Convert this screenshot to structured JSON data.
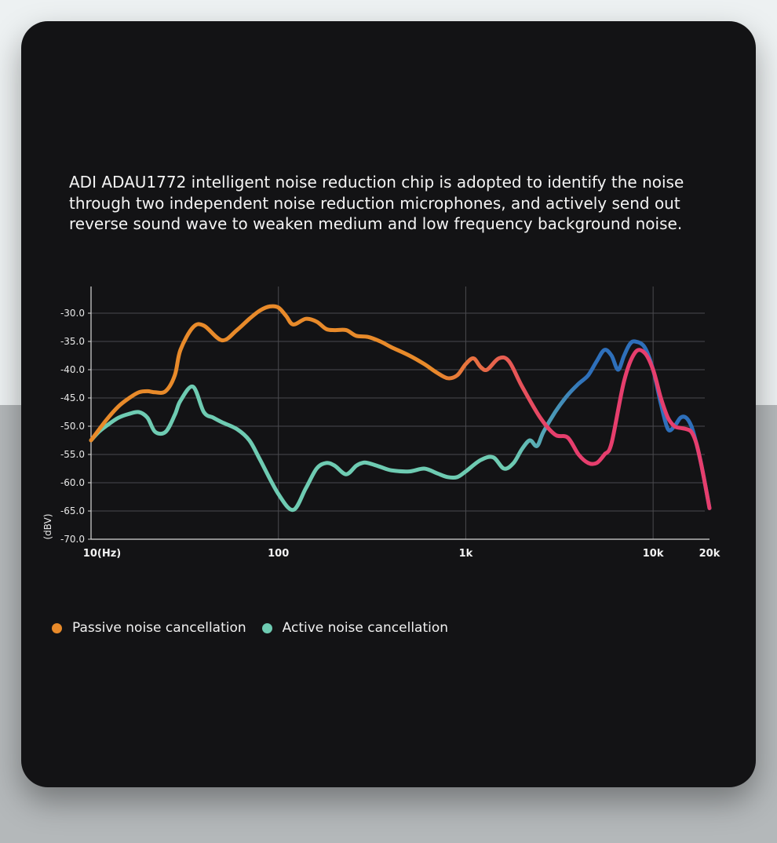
{
  "description": "ADI ADAU1772 intelligent noise reduction chip is adopted to identify the noise through two independent noise reduction microphones, and actively send out reverse sound wave to weaken medium and low frequency background noise.",
  "legend": {
    "passive": {
      "label": "Passive noise cancellation",
      "color": "#e88a2a"
    },
    "active": {
      "label": "Active noise cancellation",
      "color": "#6ecbb2"
    }
  },
  "chart_data": {
    "type": "line",
    "xscale": "log",
    "xlim": [
      10,
      20000
    ],
    "ylim": [
      -70,
      -25
    ],
    "ylabel": "(dBV)",
    "xticks": [
      {
        "value": 10,
        "label": "10(Hz)"
      },
      {
        "value": 100,
        "label": "100"
      },
      {
        "value": 1000,
        "label": "1k"
      },
      {
        "value": 10000,
        "label": "10k"
      },
      {
        "value": 20000,
        "label": "20k"
      }
    ],
    "yticks": [
      {
        "value": -30,
        "label": "-30.0"
      },
      {
        "value": -35,
        "label": "-35.0"
      },
      {
        "value": -40,
        "label": "-40.0"
      },
      {
        "value": -45,
        "label": "-45.0"
      },
      {
        "value": -50,
        "label": "-50.0"
      },
      {
        "value": -55,
        "label": "-55.0"
      },
      {
        "value": -60,
        "label": "-60.0"
      },
      {
        "value": -65,
        "label": "-65.0"
      },
      {
        "value": -70,
        "label": "-70.0"
      }
    ],
    "series": [
      {
        "name": "Passive noise cancellation",
        "color_start": "#e88a2a",
        "color_end": "#e63e6d",
        "x": [
          10,
          12,
          14,
          16,
          18,
          20,
          22,
          25,
          28,
          30,
          35,
          40,
          50,
          60,
          70,
          80,
          90,
          100,
          110,
          120,
          140,
          160,
          180,
          200,
          230,
          260,
          300,
          350,
          400,
          500,
          600,
          700,
          800,
          900,
          1000,
          1100,
          1200,
          1300,
          1500,
          1700,
          2000,
          2500,
          3000,
          3500,
          4000,
          4500,
          5000,
          5500,
          6000,
          7000,
          8000,
          9000,
          10000,
          11000,
          12000,
          13000,
          14000,
          15000,
          16000,
          17000,
          18000,
          19000,
          20000
        ],
        "y": [
          -52.5,
          -49,
          -46.5,
          -45,
          -44,
          -43.8,
          -44,
          -43.8,
          -41,
          -36.5,
          -32.5,
          -32.2,
          -34.8,
          -33,
          -31,
          -29.5,
          -28.8,
          -29,
          -30.5,
          -32,
          -31,
          -31.5,
          -32.8,
          -33,
          -33,
          -34,
          -34.2,
          -35,
          -36,
          -37.5,
          -39,
          -40.5,
          -41.5,
          -41,
          -39,
          -38,
          -39.5,
          -40,
          -38,
          -38.5,
          -43,
          -48.5,
          -51.5,
          -52,
          -55,
          -56.5,
          -56.5,
          -55,
          -53,
          -42,
          -37,
          -37,
          -40,
          -45,
          -48.5,
          -50,
          -50.3,
          -50.5,
          -51,
          -53,
          -56.5,
          -60.5,
          -64.5
        ]
      },
      {
        "name": "Active noise cancellation",
        "color_start": "#6ecbb2",
        "color_end": "#2e6fba",
        "x": [
          10,
          11,
          12,
          14,
          16,
          18,
          20,
          22,
          25,
          28,
          30,
          35,
          40,
          45,
          50,
          60,
          70,
          80,
          100,
          120,
          140,
          160,
          180,
          200,
          230,
          260,
          280,
          300,
          350,
          400,
          500,
          600,
          700,
          800,
          900,
          1000,
          1200,
          1400,
          1600,
          1800,
          2000,
          2200,
          2400,
          2600,
          3000,
          3500,
          4000,
          4500,
          5000,
          5500,
          6000,
          6500,
          7000,
          7500,
          8000,
          9000,
          10000,
          11000,
          12000,
          13000,
          14000,
          15000,
          16000,
          17000,
          18000,
          19000,
          20000
        ],
        "y": [
          -52.5,
          -51,
          -50,
          -48.5,
          -47.8,
          -47.5,
          -48.5,
          -51,
          -51,
          -48,
          -45.5,
          -43,
          -47.5,
          -48.5,
          -49.3,
          -50.5,
          -52.5,
          -56,
          -62,
          -64.8,
          -61,
          -57.5,
          -56.5,
          -57,
          -58.5,
          -57,
          -56.5,
          -56.5,
          -57.2,
          -57.8,
          -58,
          -57.5,
          -58.3,
          -59,
          -59,
          -58,
          -56,
          -55.5,
          -57.5,
          -56.5,
          -54,
          -52.5,
          -53.5,
          -51,
          -47.5,
          -44.5,
          -42.5,
          -41,
          -38.5,
          -36.5,
          -37.5,
          -40,
          -37.5,
          -35.5,
          -35,
          -36,
          -40,
          -46,
          -50.5,
          -50,
          -48.5,
          -48.5,
          -50,
          -53,
          -56.5,
          -60.5,
          -64.5
        ]
      }
    ]
  }
}
